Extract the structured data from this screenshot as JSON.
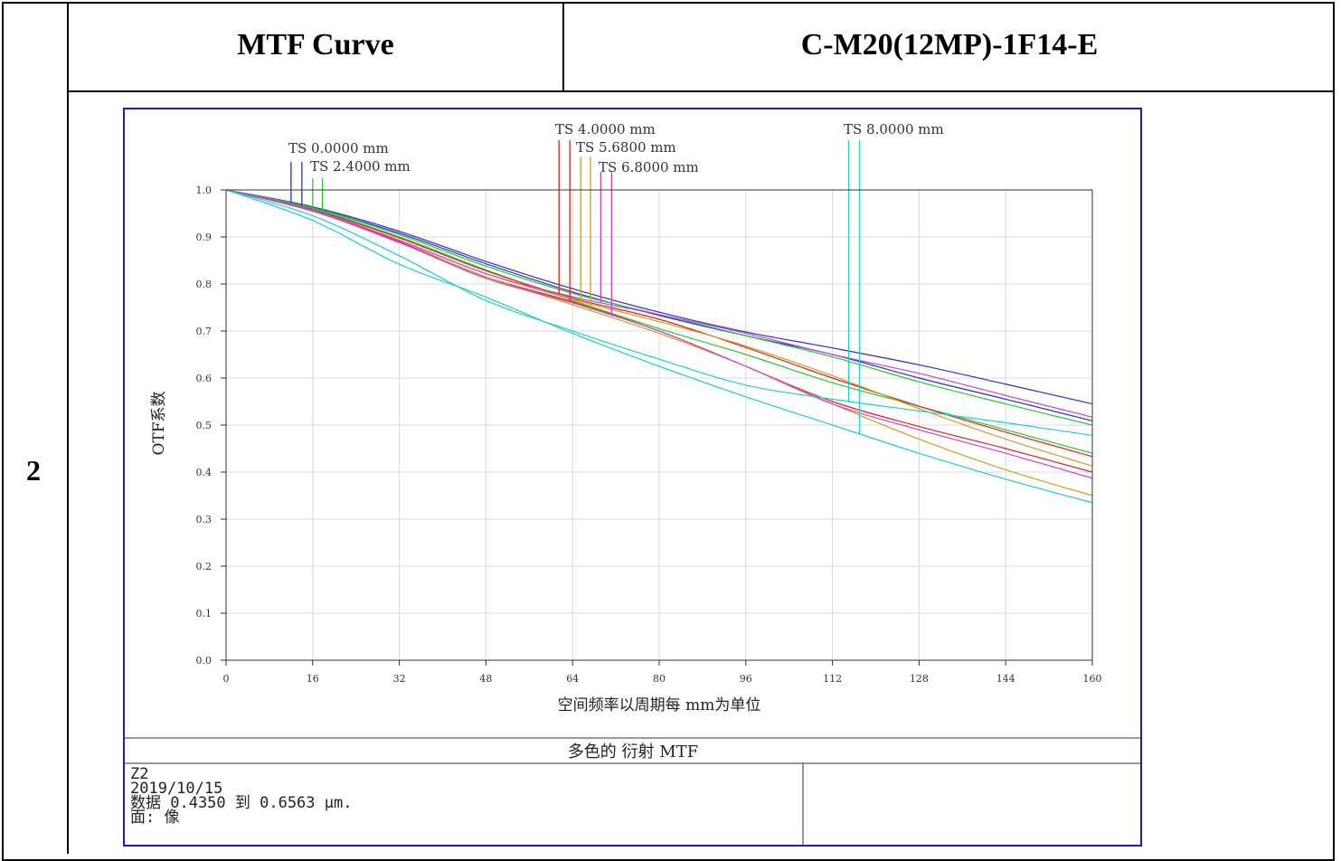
{
  "header": {
    "row_number": "2",
    "col1_title": "MTF Curve",
    "col2_title": "C-M20(12MP)-1F14-E"
  },
  "chart_data": {
    "type": "line",
    "title": "多色的 衍射 MTF",
    "xlabel": "空间频率以周期每 mm为单位",
    "ylabel": "OTF系数",
    "xlim": [
      0,
      160
    ],
    "ylim": [
      0,
      1.0
    ],
    "xticks": [
      "0",
      "16",
      "32",
      "48",
      "64",
      "80",
      "96",
      "112",
      "128",
      "144",
      "160"
    ],
    "yticks": [
      "0.0",
      "0.1",
      "0.2",
      "0.3",
      "0.4",
      "0.5",
      "0.6",
      "0.7",
      "0.8",
      "0.9",
      "1.0"
    ],
    "grid": true,
    "series": [
      {
        "name": "TS 0.0000 mm",
        "color": "#2b2bd6",
        "x": [
          0,
          16,
          32,
          48,
          64,
          80,
          96,
          112,
          128,
          144,
          160
        ],
        "y": [
          1.0,
          0.964,
          0.912,
          0.848,
          0.79,
          0.74,
          0.698,
          0.664,
          0.628,
          0.587,
          0.545
        ]
      },
      {
        "name": "TS 0.0000 mm",
        "color": "#2b2bd6",
        "x": [
          0,
          16,
          32,
          48,
          64,
          80,
          96,
          112,
          128,
          144,
          160
        ],
        "y": [
          1.0,
          0.962,
          0.908,
          0.843,
          0.783,
          0.733,
          0.69,
          0.65,
          0.6,
          0.555,
          0.509
        ]
      },
      {
        "name": "TS 2.4000 mm",
        "color": "#22cc22",
        "x": [
          0,
          16,
          32,
          48,
          64,
          80,
          96,
          112,
          128,
          144,
          160
        ],
        "y": [
          1.0,
          0.962,
          0.905,
          0.838,
          0.78,
          0.735,
          0.69,
          0.645,
          0.592,
          0.545,
          0.5
        ]
      },
      {
        "name": "TS 2.4000 mm",
        "color": "#22cc22",
        "x": [
          0,
          16,
          32,
          48,
          64,
          80,
          96,
          112,
          128,
          144,
          160
        ],
        "y": [
          1.0,
          0.96,
          0.9,
          0.83,
          0.765,
          0.705,
          0.65,
          0.59,
          0.54,
          0.49,
          0.44
        ]
      },
      {
        "name": "TS 4.0000 mm",
        "color": "#dd2222",
        "x": [
          0,
          16,
          32,
          48,
          64,
          80,
          96,
          112,
          128,
          144,
          160
        ],
        "y": [
          1.0,
          0.958,
          0.898,
          0.828,
          0.77,
          0.725,
          0.665,
          0.6,
          0.54,
          0.485,
          0.433
        ]
      },
      {
        "name": "TS 4.0000 mm",
        "color": "#dd2222",
        "x": [
          0,
          16,
          32,
          48,
          64,
          80,
          96,
          112,
          128,
          144,
          160
        ],
        "y": [
          1.0,
          0.955,
          0.89,
          0.815,
          0.762,
          0.7,
          0.625,
          0.55,
          0.497,
          0.45,
          0.4
        ]
      },
      {
        "name": "TS 5.6800 mm",
        "color": "#c8a020",
        "x": [
          0,
          16,
          32,
          48,
          64,
          80,
          96,
          112,
          128,
          144,
          160
        ],
        "y": [
          1.0,
          0.956,
          0.893,
          0.822,
          0.767,
          0.72,
          0.668,
          0.605,
          0.535,
          0.47,
          0.413
        ]
      },
      {
        "name": "TS 5.6800 mm",
        "color": "#c8a020",
        "x": [
          0,
          16,
          32,
          48,
          64,
          80,
          96,
          112,
          128,
          144,
          160
        ],
        "y": [
          1.0,
          0.955,
          0.888,
          0.815,
          0.756,
          0.695,
          0.625,
          0.545,
          0.47,
          0.405,
          0.35
        ]
      },
      {
        "name": "TS 6.8000 mm",
        "color": "#d040d0",
        "x": [
          0,
          16,
          32,
          48,
          64,
          80,
          96,
          112,
          128,
          144,
          160
        ],
        "y": [
          1.0,
          0.957,
          0.893,
          0.822,
          0.773,
          0.735,
          0.695,
          0.65,
          0.61,
          0.563,
          0.517
        ]
      },
      {
        "name": "TS 6.8000 mm",
        "color": "#d040d0",
        "x": [
          0,
          16,
          32,
          48,
          64,
          80,
          96,
          112,
          128,
          144,
          160
        ],
        "y": [
          1.0,
          0.955,
          0.888,
          0.812,
          0.76,
          0.7,
          0.625,
          0.545,
          0.49,
          0.44,
          0.387
        ]
      },
      {
        "name": "TS 8.0000 mm",
        "color": "#22cccc",
        "x": [
          0,
          16,
          32,
          48,
          64,
          80,
          96,
          112,
          128,
          144,
          160
        ],
        "y": [
          1.0,
          0.945,
          0.86,
          0.765,
          0.7,
          0.64,
          0.585,
          0.555,
          0.53,
          0.505,
          0.478
        ]
      },
      {
        "name": "TS 8.0000 mm",
        "color": "#22cccc",
        "x": [
          0,
          16,
          32,
          48,
          64,
          80,
          96,
          112,
          128,
          144,
          160
        ],
        "y": [
          1.0,
          0.935,
          0.842,
          0.772,
          0.695,
          0.625,
          0.56,
          0.5,
          0.44,
          0.385,
          0.335
        ]
      }
    ],
    "legend_labels": [
      "TS 0.0000 mm",
      "TS 2.4000 mm",
      "TS 4.0000 mm",
      "TS 5.6800 mm",
      "TS 6.8000 mm",
      "TS 8.0000 mm"
    ],
    "footer": {
      "line1": "Z2",
      "line2": "2019/10/15",
      "line3": "数据 0.4350 到 0.6563 μm.",
      "line4": "面: 像"
    }
  }
}
